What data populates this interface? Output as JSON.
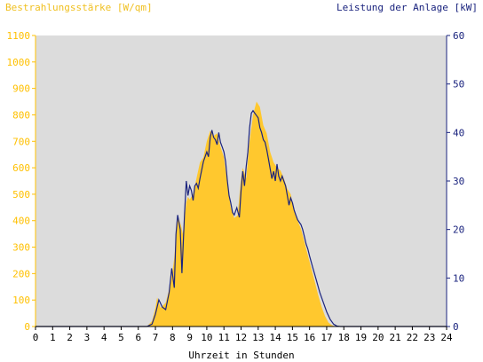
{
  "chart_data": {
    "type": "area",
    "title": "",
    "y_left_label": "Bestrahlungsstärke [W/qm]",
    "y_right_label": "Leistung der Anlage [kW]",
    "xlabel": "Uhrzeit in Stunden",
    "x_ticks": [
      "0",
      "1",
      "2",
      "3",
      "4",
      "5",
      "6",
      "7",
      "8",
      "9",
      "10",
      "11",
      "12",
      "13",
      "14",
      "15",
      "16",
      "17",
      "18",
      "19",
      "20",
      "21",
      "22",
      "23",
      "24"
    ],
    "y_left_ticks": [
      "0",
      "100",
      "200",
      "300",
      "400",
      "500",
      "600",
      "700",
      "800",
      "900",
      "1000",
      "1100"
    ],
    "y_right_ticks": [
      "0",
      "10",
      "20",
      "30",
      "40",
      "50",
      "60"
    ],
    "xlim": [
      0,
      24
    ],
    "y_left_lim": [
      0,
      1100
    ],
    "y_right_lim": [
      0,
      60
    ],
    "grid": false,
    "colors": {
      "background": "#dcdcdc",
      "irradiance_fill": "#ffc82e",
      "power_line": "#1a237e",
      "left_axis": "#ffc000",
      "right_axis": "#1a237e"
    },
    "series": [
      {
        "name": "Bestrahlungsstärke",
        "axis": "left",
        "x": [
          0,
          6.5,
          6.8,
          7.0,
          7.1,
          7.3,
          7.6,
          7.8,
          8.0,
          8.1,
          8.3,
          8.5,
          8.6,
          8.8,
          8.9,
          9.0,
          9.2,
          9.4,
          9.6,
          9.8,
          10.0,
          10.2,
          10.4,
          10.6,
          10.8,
          11.0,
          11.2,
          11.4,
          11.6,
          11.8,
          12.0,
          12.1,
          12.3,
          12.5,
          12.7,
          12.9,
          13.1,
          13.3,
          13.5,
          13.7,
          13.9,
          14.1,
          14.3,
          14.5,
          14.7,
          14.9,
          15.1,
          15.3,
          15.5,
          15.7,
          15.9,
          16.1,
          16.3,
          16.5,
          16.7,
          16.9,
          17.1,
          17.3,
          17.5,
          17.7,
          17.9,
          18.1,
          24
        ],
        "y": [
          0,
          0,
          20,
          70,
          110,
          70,
          90,
          140,
          210,
          260,
          420,
          380,
          350,
          470,
          490,
          480,
          500,
          560,
          620,
          640,
          700,
          740,
          720,
          730,
          680,
          640,
          540,
          450,
          410,
          420,
          560,
          600,
          560,
          700,
          800,
          850,
          830,
          760,
          730,
          660,
          620,
          600,
          590,
          560,
          520,
          500,
          440,
          400,
          370,
          320,
          270,
          220,
          170,
          120,
          75,
          40,
          15,
          5,
          0,
          0,
          0,
          0,
          0
        ]
      },
      {
        "name": "Leistung der Anlage",
        "axis": "right",
        "x": [
          0,
          6.5,
          6.8,
          7.0,
          7.2,
          7.4,
          7.6,
          7.8,
          7.95,
          8.1,
          8.2,
          8.3,
          8.45,
          8.55,
          8.7,
          8.8,
          8.9,
          9.0,
          9.1,
          9.2,
          9.3,
          9.4,
          9.5,
          9.6,
          9.8,
          10.0,
          10.1,
          10.2,
          10.3,
          10.4,
          10.5,
          10.6,
          10.7,
          10.8,
          10.9,
          11.0,
          11.1,
          11.2,
          11.3,
          11.4,
          11.5,
          11.6,
          11.75,
          11.9,
          12.0,
          12.1,
          12.2,
          12.3,
          12.4,
          12.5,
          12.6,
          12.7,
          12.8,
          12.9,
          13.0,
          13.1,
          13.2,
          13.3,
          13.4,
          13.5,
          13.6,
          13.7,
          13.8,
          13.9,
          14.0,
          14.1,
          14.2,
          14.3,
          14.4,
          14.5,
          14.6,
          14.7,
          14.8,
          14.9,
          15.0,
          15.1,
          15.2,
          15.3,
          15.4,
          15.5,
          15.6,
          15.7,
          15.8,
          15.9,
          16.0,
          16.2,
          16.4,
          16.6,
          16.8,
          17.0,
          17.2,
          17.4,
          17.6,
          17.8,
          18.0,
          24
        ],
        "y": [
          0,
          0,
          0.5,
          2.5,
          5.5,
          4.0,
          3.5,
          7.0,
          12.0,
          8.0,
          19.0,
          23.0,
          20.0,
          11.0,
          23.0,
          30.0,
          27.0,
          29.0,
          28.0,
          26.0,
          29.0,
          29.5,
          28.5,
          30.5,
          34.0,
          36.0,
          35.0,
          39.0,
          40.5,
          39.0,
          38.5,
          37.5,
          40.0,
          38.0,
          37.0,
          36.0,
          34.0,
          30.0,
          27.0,
          25.5,
          23.5,
          23.0,
          24.5,
          22.5,
          28.0,
          32.0,
          29.0,
          33.0,
          36.0,
          41.0,
          44.0,
          44.5,
          44.0,
          43.5,
          43.0,
          41.0,
          40.0,
          38.5,
          38.0,
          36.5,
          34.5,
          32.5,
          30.5,
          32.0,
          30.0,
          33.5,
          31.0,
          30.0,
          31.0,
          30.0,
          29.0,
          27.0,
          25.0,
          26.5,
          25.5,
          24.0,
          23.0,
          22.0,
          21.5,
          21.0,
          20.0,
          18.5,
          17.0,
          16.0,
          14.5,
          12.0,
          9.5,
          7.0,
          5.0,
          3.0,
          1.5,
          0.5,
          0.1,
          0,
          0,
          0
        ]
      }
    ]
  }
}
